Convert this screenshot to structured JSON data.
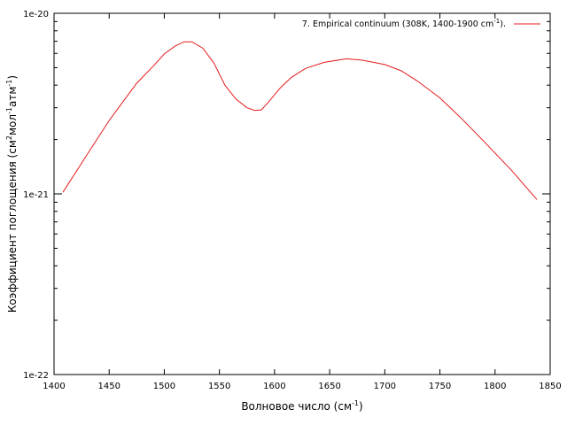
{
  "chart_data": {
    "type": "line",
    "title": "",
    "xlabel": "Волновое число (см",
    "xlabel_sup": "-1",
    "xlabel_end": ")",
    "ylabel_parts": [
      {
        "t": "Коэффициент поглощения (см"
      },
      {
        "t": "2",
        "sup": true
      },
      {
        "t": "мол"
      },
      {
        "t": "-1",
        "sup": true
      },
      {
        "t": "атм"
      },
      {
        "t": "-1",
        "sup": true
      },
      {
        "t": ")"
      }
    ],
    "xlim": [
      1400,
      1850
    ],
    "ylim": [
      1e-22,
      1e-20
    ],
    "yscale": "log",
    "grid": false,
    "legend_position": "top-right",
    "x_ticks": [
      {
        "v": 1400,
        "label": "1400"
      },
      {
        "v": 1450,
        "label": "1450"
      },
      {
        "v": 1500,
        "label": "1500"
      },
      {
        "v": 1550,
        "label": "1550"
      },
      {
        "v": 1600,
        "label": "1600"
      },
      {
        "v": 1650,
        "label": "1650"
      },
      {
        "v": 1700,
        "label": "1700"
      },
      {
        "v": 1750,
        "label": "1750"
      },
      {
        "v": 1800,
        "label": "1800"
      },
      {
        "v": 1850,
        "label": "1850"
      }
    ],
    "y_ticks": [
      {
        "v": 1e-22,
        "label": "1e-22"
      },
      {
        "v": 1e-21,
        "label": "1e-21"
      },
      {
        "v": 1e-20,
        "label": "1e-20"
      }
    ],
    "series": [
      {
        "name": "7. Empirical continuum (308K, 1400-1900 cm",
        "name_sup": "-1",
        "name_end": ").",
        "color": "#e41a1c",
        "x": [
          1408,
          1430,
          1450,
          1475,
          1490,
          1500,
          1510,
          1518,
          1525,
          1535,
          1545,
          1555,
          1565,
          1575,
          1582,
          1588,
          1595,
          1605,
          1615,
          1628,
          1645,
          1665,
          1680,
          1700,
          1715,
          1730,
          1750,
          1770,
          1790,
          1815,
          1838
        ],
        "y": [
          1.02e-21,
          1.65e-21,
          2.55e-21,
          4.1e-21,
          5.1e-21,
          5.95e-21,
          6.6e-21,
          6.95e-21,
          6.95e-21,
          6.4e-21,
          5.3e-21,
          4e-21,
          3.35e-21,
          3e-21,
          2.9e-21,
          2.92e-21,
          3.25e-21,
          3.85e-21,
          4.4e-21,
          4.95e-21,
          5.35e-21,
          5.6e-21,
          5.5e-21,
          5.2e-21,
          4.8e-21,
          4.2e-21,
          3.4e-21,
          2.6e-21,
          1.95e-21,
          1.35e-21,
          9.3e-22
        ]
      }
    ]
  }
}
